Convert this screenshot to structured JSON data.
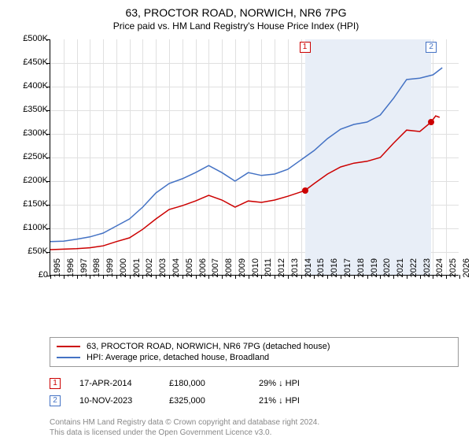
{
  "title": "63, PROCTOR ROAD, NORWICH, NR6 7PG",
  "subtitle": "Price paid vs. HM Land Registry's House Price Index (HPI)",
  "chart": {
    "type": "line",
    "xlim": [
      1995,
      2026
    ],
    "ylim": [
      0,
      500000
    ],
    "y_ticks": [
      0,
      50000,
      100000,
      150000,
      200000,
      250000,
      300000,
      350000,
      400000,
      450000,
      500000
    ],
    "y_tick_labels": [
      "£0",
      "£50K",
      "£100K",
      "£150K",
      "£200K",
      "£250K",
      "£300K",
      "£350K",
      "£400K",
      "£450K",
      "£500K"
    ],
    "x_ticks": [
      1995,
      1996,
      1997,
      1998,
      1999,
      2000,
      2001,
      2002,
      2003,
      2004,
      2005,
      2006,
      2007,
      2008,
      2009,
      2010,
      2011,
      2012,
      2013,
      2014,
      2015,
      2016,
      2017,
      2018,
      2019,
      2020,
      2021,
      2022,
      2023,
      2024,
      2025,
      2026
    ],
    "grid_color": "#e0e0e0",
    "background_color": "#ffffff",
    "axis_fontsize": 11,
    "shaded_region": {
      "x_start": 2014.29,
      "x_end": 2023.86,
      "color": "#e8eef7"
    },
    "series": [
      {
        "name": "price_paid",
        "color": "#cc0000",
        "line_width": 1.5,
        "points": [
          [
            1995,
            55000
          ],
          [
            1996,
            56000
          ],
          [
            1997,
            57000
          ],
          [
            1998,
            59000
          ],
          [
            1999,
            63000
          ],
          [
            2000,
            72000
          ],
          [
            2001,
            80000
          ],
          [
            2002,
            98000
          ],
          [
            2003,
            120000
          ],
          [
            2004,
            140000
          ],
          [
            2005,
            148000
          ],
          [
            2006,
            158000
          ],
          [
            2007,
            170000
          ],
          [
            2008,
            160000
          ],
          [
            2009,
            145000
          ],
          [
            2010,
            158000
          ],
          [
            2011,
            155000
          ],
          [
            2012,
            160000
          ],
          [
            2013,
            168000
          ],
          [
            2014.29,
            180000
          ],
          [
            2015,
            195000
          ],
          [
            2016,
            215000
          ],
          [
            2017,
            230000
          ],
          [
            2018,
            238000
          ],
          [
            2019,
            242000
          ],
          [
            2020,
            250000
          ],
          [
            2021,
            280000
          ],
          [
            2022,
            308000
          ],
          [
            2023,
            305000
          ],
          [
            2023.86,
            325000
          ],
          [
            2024.2,
            338000
          ],
          [
            2024.5,
            335000
          ]
        ]
      },
      {
        "name": "hpi",
        "color": "#4472c4",
        "line_width": 1.5,
        "points": [
          [
            1995,
            72000
          ],
          [
            1996,
            73000
          ],
          [
            1997,
            77000
          ],
          [
            1998,
            82000
          ],
          [
            1999,
            90000
          ],
          [
            2000,
            105000
          ],
          [
            2001,
            120000
          ],
          [
            2002,
            145000
          ],
          [
            2003,
            175000
          ],
          [
            2004,
            195000
          ],
          [
            2005,
            205000
          ],
          [
            2006,
            218000
          ],
          [
            2007,
            233000
          ],
          [
            2008,
            218000
          ],
          [
            2009,
            200000
          ],
          [
            2010,
            218000
          ],
          [
            2011,
            212000
          ],
          [
            2012,
            215000
          ],
          [
            2013,
            225000
          ],
          [
            2014,
            245000
          ],
          [
            2015,
            265000
          ],
          [
            2016,
            290000
          ],
          [
            2017,
            310000
          ],
          [
            2018,
            320000
          ],
          [
            2019,
            325000
          ],
          [
            2020,
            340000
          ],
          [
            2021,
            375000
          ],
          [
            2022,
            415000
          ],
          [
            2023,
            418000
          ],
          [
            2024,
            425000
          ],
          [
            2024.7,
            440000
          ]
        ]
      }
    ],
    "markers": [
      {
        "id": "1",
        "x": 2014.29,
        "y": 180000,
        "box_y_top": true,
        "color": "#cc0000"
      },
      {
        "id": "2",
        "x": 2023.86,
        "y": 325000,
        "box_y_top": true,
        "color": "#4472c4"
      }
    ]
  },
  "legend": {
    "items": [
      {
        "color": "#cc0000",
        "label": "63, PROCTOR ROAD, NORWICH, NR6 7PG (detached house)"
      },
      {
        "color": "#4472c4",
        "label": "HPI: Average price, detached house, Broadland"
      }
    ]
  },
  "data_rows": [
    {
      "marker": "1",
      "marker_color": "#cc0000",
      "date": "17-APR-2014",
      "price": "£180,000",
      "delta": "29% ↓ HPI"
    },
    {
      "marker": "2",
      "marker_color": "#4472c4",
      "date": "10-NOV-2023",
      "price": "£325,000",
      "delta": "21% ↓ HPI"
    }
  ],
  "footnote_line1": "Contains HM Land Registry data © Crown copyright and database right 2024.",
  "footnote_line2": "This data is licensed under the Open Government Licence v3.0."
}
